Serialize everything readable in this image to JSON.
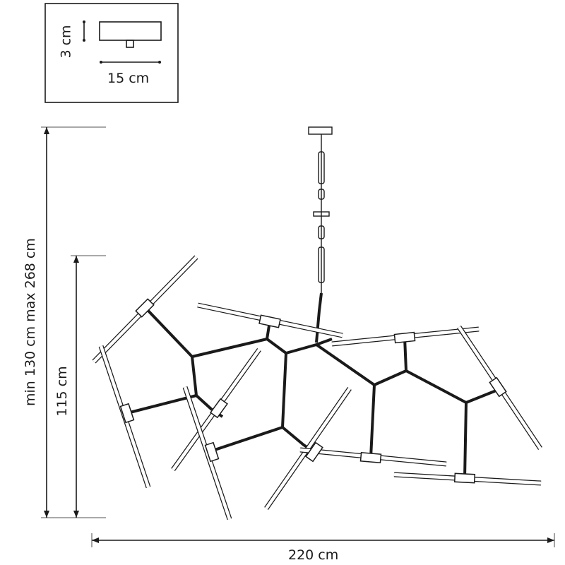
{
  "canopy_inset": {
    "height_label": "3 cm",
    "width_label": "15 cm"
  },
  "dimensions": {
    "total_height_label": "min 130 cm max 268 cm",
    "body_height_label": "115 cm",
    "width_label": "220 cm"
  },
  "colors": {
    "line": "#1a1a1a",
    "background": "#ffffff"
  }
}
